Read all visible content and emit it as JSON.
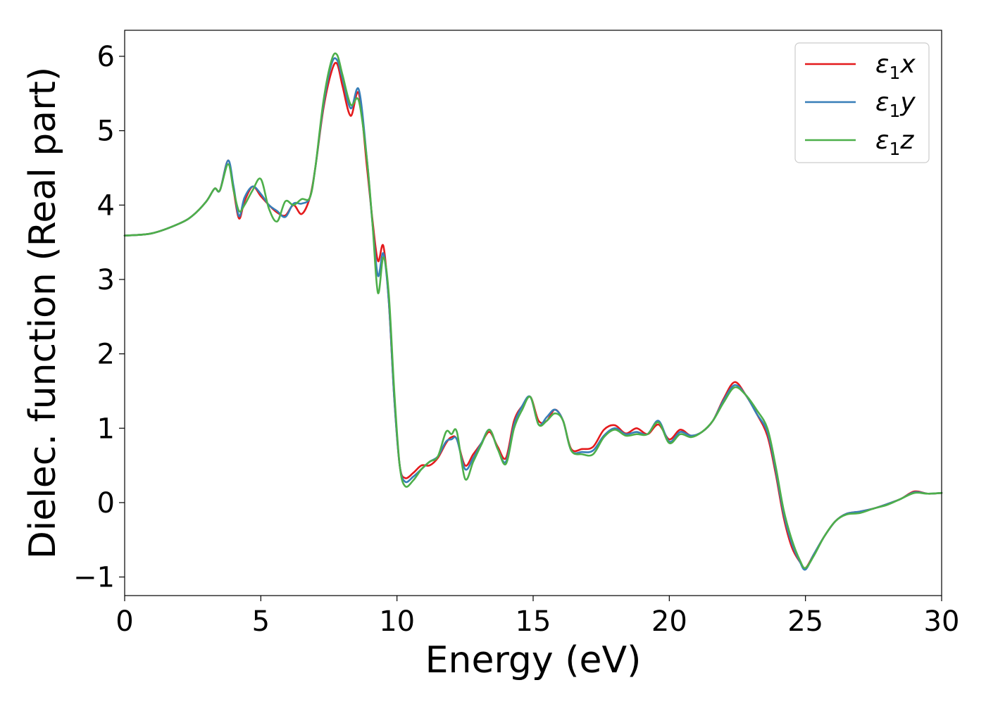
{
  "chart_data": {
    "type": "line",
    "title": "",
    "xlabel": "Energy (eV)",
    "ylabel": "Dielec. function (Real part)",
    "xlim": [
      0,
      30
    ],
    "ylim": [
      -1.25,
      6.35
    ],
    "xticks": [
      0,
      5,
      10,
      15,
      20,
      25,
      30
    ],
    "yticks": [
      -1,
      0,
      1,
      2,
      3,
      4,
      5,
      6
    ],
    "ytick_labels": [
      "−1",
      "0",
      "1",
      "2",
      "3",
      "4",
      "5",
      "6"
    ],
    "grid": false,
    "legend_position": "top-right",
    "series": [
      {
        "name": "ε1x",
        "legend_base": "ε",
        "legend_sub": "1",
        "legend_tail": "x",
        "color": "#e41a1c",
        "x": [
          0,
          1,
          2,
          2.5,
          3,
          3.3,
          3.5,
          3.8,
          4.0,
          4.2,
          4.4,
          4.7,
          5.0,
          5.3,
          5.6,
          5.9,
          6.2,
          6.5,
          6.8,
          7.0,
          7.3,
          7.6,
          7.8,
          8.0,
          8.3,
          8.6,
          8.9,
          9.1,
          9.3,
          9.5,
          9.7,
          9.9,
          10.1,
          10.3,
          10.6,
          10.9,
          11.2,
          11.5,
          11.8,
          12.0,
          12.2,
          12.5,
          12.8,
          13.1,
          13.4,
          13.7,
          14.0,
          14.3,
          14.6,
          14.9,
          15.2,
          15.5,
          15.8,
          16.1,
          16.4,
          16.8,
          17.2,
          17.6,
          18.0,
          18.4,
          18.8,
          19.2,
          19.6,
          20.0,
          20.4,
          20.8,
          21.2,
          21.6,
          22.0,
          22.4,
          22.8,
          23.2,
          23.6,
          23.9,
          24.2,
          24.5,
          24.8,
          25.0,
          25.3,
          25.7,
          26.1,
          26.5,
          27.0,
          27.5,
          28.0,
          28.5,
          29.0,
          29.5,
          30.0
        ],
        "y": [
          3.59,
          3.62,
          3.75,
          3.86,
          4.05,
          4.22,
          4.2,
          4.6,
          4.2,
          3.82,
          4.05,
          4.25,
          4.12,
          4.0,
          3.9,
          3.86,
          4.0,
          3.88,
          4.1,
          4.5,
          5.3,
          5.8,
          5.9,
          5.6,
          5.2,
          5.5,
          4.5,
          3.8,
          3.25,
          3.45,
          2.7,
          1.4,
          0.5,
          0.33,
          0.4,
          0.5,
          0.5,
          0.6,
          0.8,
          0.88,
          0.85,
          0.5,
          0.65,
          0.8,
          0.95,
          0.75,
          0.6,
          1.1,
          1.3,
          1.42,
          1.1,
          1.1,
          1.25,
          1.1,
          0.72,
          0.72,
          0.75,
          0.98,
          1.04,
          0.93,
          1.0,
          0.92,
          1.05,
          0.85,
          0.98,
          0.9,
          0.95,
          1.1,
          1.4,
          1.62,
          1.45,
          1.2,
          0.9,
          0.4,
          -0.2,
          -0.6,
          -0.8,
          -0.88,
          -0.7,
          -0.45,
          -0.25,
          -0.15,
          -0.12,
          -0.08,
          -0.02,
          0.05,
          0.15,
          0.12,
          0.13
        ]
      },
      {
        "name": "ε1y",
        "legend_base": "ε",
        "legend_sub": "1",
        "legend_tail": "y",
        "color": "#377eb8",
        "x": [
          0,
          1,
          2,
          2.5,
          3,
          3.3,
          3.5,
          3.8,
          4.0,
          4.2,
          4.4,
          4.7,
          5.0,
          5.3,
          5.6,
          5.9,
          6.2,
          6.5,
          6.8,
          7.0,
          7.3,
          7.6,
          7.8,
          8.0,
          8.3,
          8.6,
          8.9,
          9.1,
          9.3,
          9.5,
          9.7,
          9.9,
          10.1,
          10.3,
          10.6,
          10.9,
          11.2,
          11.5,
          11.8,
          12.0,
          12.2,
          12.5,
          12.8,
          13.1,
          13.4,
          13.7,
          14.0,
          14.3,
          14.6,
          14.9,
          15.2,
          15.5,
          15.8,
          16.1,
          16.4,
          16.8,
          17.2,
          17.6,
          18.0,
          18.4,
          18.8,
          19.2,
          19.6,
          20.0,
          20.4,
          20.8,
          21.2,
          21.6,
          22.0,
          22.4,
          22.8,
          23.2,
          23.6,
          23.9,
          24.2,
          24.5,
          24.8,
          25.0,
          25.3,
          25.7,
          26.1,
          26.5,
          27.0,
          27.5,
          28.0,
          28.5,
          29.0,
          29.5,
          30.0
        ],
        "y": [
          3.59,
          3.62,
          3.75,
          3.86,
          4.05,
          4.22,
          4.2,
          4.6,
          4.25,
          3.85,
          4.1,
          4.25,
          4.15,
          4.0,
          3.92,
          3.84,
          4.02,
          4.02,
          4.1,
          4.5,
          5.35,
          5.9,
          5.95,
          5.7,
          5.3,
          5.55,
          4.6,
          3.75,
          3.05,
          3.35,
          2.7,
          1.4,
          0.5,
          0.28,
          0.35,
          0.45,
          0.55,
          0.62,
          0.82,
          0.85,
          0.85,
          0.45,
          0.6,
          0.8,
          0.98,
          0.72,
          0.55,
          1.05,
          1.3,
          1.42,
          1.05,
          1.15,
          1.25,
          1.1,
          0.7,
          0.68,
          0.7,
          0.9,
          1.0,
          0.92,
          0.95,
          0.92,
          1.1,
          0.82,
          0.95,
          0.9,
          0.95,
          1.1,
          1.38,
          1.58,
          1.45,
          1.2,
          0.95,
          0.45,
          -0.15,
          -0.55,
          -0.8,
          -0.9,
          -0.7,
          -0.45,
          -0.25,
          -0.15,
          -0.12,
          -0.08,
          -0.02,
          0.05,
          0.14,
          0.12,
          0.13
        ]
      },
      {
        "name": "ε1z",
        "legend_base": "ε",
        "legend_sub": "1",
        "legend_tail": "z",
        "color": "#4daf4a",
        "x": [
          0,
          1,
          2,
          2.5,
          3,
          3.3,
          3.5,
          3.8,
          4.0,
          4.2,
          4.4,
          4.7,
          5.0,
          5.3,
          5.6,
          5.9,
          6.2,
          6.5,
          6.8,
          7.0,
          7.3,
          7.6,
          7.8,
          8.0,
          8.3,
          8.6,
          8.9,
          9.1,
          9.3,
          9.5,
          9.7,
          9.9,
          10.1,
          10.3,
          10.6,
          10.9,
          11.2,
          11.5,
          11.8,
          12.0,
          12.2,
          12.5,
          12.8,
          13.1,
          13.4,
          13.7,
          14.0,
          14.3,
          14.6,
          14.9,
          15.2,
          15.5,
          15.8,
          16.1,
          16.4,
          16.8,
          17.2,
          17.6,
          18.0,
          18.4,
          18.8,
          19.2,
          19.6,
          20.0,
          20.4,
          20.8,
          21.2,
          21.6,
          22.0,
          22.4,
          22.8,
          23.2,
          23.6,
          23.9,
          24.2,
          24.5,
          24.8,
          25.0,
          25.3,
          25.7,
          26.1,
          26.5,
          27.0,
          27.5,
          28.0,
          28.5,
          29.0,
          29.5,
          30.0
        ],
        "y": [
          3.59,
          3.62,
          3.75,
          3.86,
          4.05,
          4.22,
          4.2,
          4.55,
          4.2,
          3.92,
          4.0,
          4.2,
          4.35,
          3.95,
          3.78,
          4.05,
          4.0,
          4.08,
          4.1,
          4.5,
          5.4,
          5.95,
          6.02,
          5.75,
          5.35,
          5.4,
          4.6,
          3.75,
          2.82,
          3.3,
          2.8,
          1.5,
          0.5,
          0.22,
          0.3,
          0.45,
          0.55,
          0.62,
          0.95,
          0.92,
          0.95,
          0.32,
          0.55,
          0.78,
          0.98,
          0.72,
          0.52,
          1.0,
          1.25,
          1.42,
          1.05,
          1.1,
          1.2,
          1.1,
          0.7,
          0.65,
          0.65,
          0.88,
          0.98,
          0.9,
          0.92,
          0.92,
          1.08,
          0.8,
          0.92,
          0.88,
          0.95,
          1.1,
          1.35,
          1.55,
          1.45,
          1.25,
          1.0,
          0.5,
          -0.1,
          -0.5,
          -0.78,
          -0.88,
          -0.72,
          -0.45,
          -0.25,
          -0.16,
          -0.14,
          -0.08,
          -0.03,
          0.05,
          0.13,
          0.12,
          0.13
        ]
      }
    ]
  }
}
